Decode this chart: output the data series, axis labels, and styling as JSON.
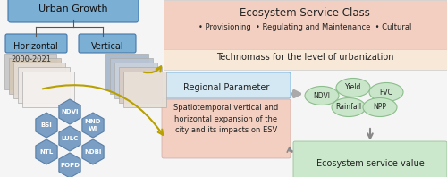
{
  "bg_color": "#f5f5f5",
  "top_right_bg": "#f2cfc0",
  "techno_bg": "#f7e8d8",
  "regional_param_bg": "#d4e8f4",
  "spatio_bg": "#f2cfc0",
  "esv_bg": "#cce8cc",
  "hex_color": "#7b9fc4",
  "hex_border": "#5a7fa8",
  "urban_growth_color": "#7bafd4",
  "horiz_vert_color": "#7bafd4",
  "title": "Ecosystem Service Class",
  "subtitle": "• Provisioning  • Regulating and Maintenance  • Cultural",
  "techno_text": "Technomass for the level of urbanization",
  "regional_text": "Regional Parameter",
  "spatio_text": "Spatiotemporal vertical and\nhorizontal expansion of the\ncity and its impacts on ESV",
  "esv_text": "Ecosystem service value",
  "year_text": "2000-2021",
  "urban_growth_text": "Urban Growth",
  "horizontal_text": "Horizontal",
  "vertical_text": "Vertical",
  "circle_color": "#c8e6c8",
  "circle_border": "#88bb88",
  "golden_arrow": "#b8a000",
  "gray_arrow": "#888888",
  "layer_colors_h": [
    "#c8c8c8",
    "#d4c8b8",
    "#e4dcd4",
    "#ede8e4",
    "#f4f0ee"
  ],
  "layer_colors_v": [
    "#a8b8cc",
    "#b8c4d4",
    "#c8d0dc",
    "#d8ccc4",
    "#e8e0d8"
  ],
  "hex_positions": [
    [
      52,
      140,
      "BSI"
    ],
    [
      78,
      125,
      "NDVI"
    ],
    [
      104,
      140,
      "MND\nWI"
    ],
    [
      78,
      155,
      "LULC"
    ],
    [
      52,
      170,
      "NTL"
    ],
    [
      104,
      170,
      "NDBI"
    ],
    [
      78,
      185,
      "POPD"
    ]
  ],
  "circle_positions": [
    [
      360,
      107,
      "NDVI"
    ],
    [
      395,
      98,
      "Yield"
    ],
    [
      432,
      103,
      "FVC"
    ],
    [
      390,
      120,
      "Rainfall"
    ],
    [
      425,
      120,
      "NPP"
    ]
  ]
}
